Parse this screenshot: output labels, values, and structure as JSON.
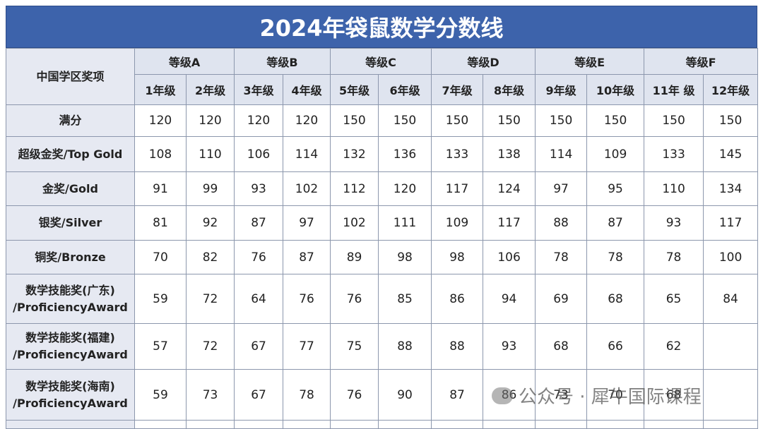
{
  "header": {
    "title": "2024年袋鼠数学分数线"
  },
  "table": {
    "corner": "中国学区奖项",
    "levels": [
      "等级A",
      "等级B",
      "等级C",
      "等级D",
      "等级E",
      "等级F"
    ],
    "grades": [
      "1年级",
      "2年级",
      "3年级",
      "4年级",
      "5年级",
      "6年级",
      "7年级",
      "8年级",
      "9年级",
      "10年级",
      "11年 级",
      "12年级"
    ],
    "rows": [
      {
        "label": [
          "满分"
        ],
        "values": [
          120,
          120,
          120,
          120,
          150,
          150,
          150,
          150,
          150,
          150,
          150,
          150
        ]
      },
      {
        "label": [
          "超级金奖/Top Gold"
        ],
        "values": [
          108,
          110,
          106,
          114,
          132,
          136,
          133,
          138,
          114,
          109,
          133,
          145
        ]
      },
      {
        "label": [
          "金奖/Gold"
        ],
        "values": [
          91,
          99,
          93,
          102,
          112,
          120,
          117,
          124,
          97,
          95,
          110,
          134
        ]
      },
      {
        "label": [
          "银奖/Silver"
        ],
        "values": [
          81,
          92,
          87,
          97,
          102,
          111,
          109,
          117,
          88,
          87,
          93,
          117
        ]
      },
      {
        "label": [
          "铜奖/Bronze"
        ],
        "values": [
          70,
          82,
          76,
          87,
          89,
          98,
          98,
          106,
          78,
          78,
          78,
          100
        ]
      },
      {
        "label": [
          "数学技能奖(广东)",
          "/ProficiencyAward"
        ],
        "values": [
          59,
          72,
          64,
          76,
          76,
          85,
          86,
          94,
          69,
          68,
          65,
          84
        ]
      },
      {
        "label": [
          "数学技能奖(福建)",
          "/ProficiencyAward"
        ],
        "values": [
          57,
          72,
          67,
          77,
          75,
          88,
          88,
          93,
          68,
          66,
          62,
          null
        ]
      },
      {
        "label": [
          "数学技能奖(海南)",
          "/ProficiencyAward"
        ],
        "values": [
          59,
          73,
          67,
          78,
          76,
          90,
          87,
          86,
          73,
          70,
          68,
          null
        ]
      }
    ]
  },
  "watermark": "公众号 · 犀牛国际课程"
}
